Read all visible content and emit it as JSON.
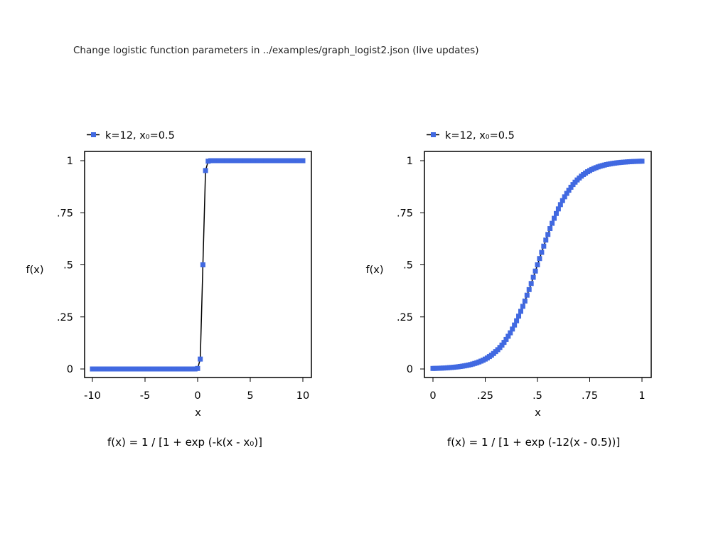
{
  "page_title": "Change logistic function parameters in ../examples/graph_logist2.json (live updates)",
  "colors": {
    "marker": "#4169e1",
    "line": "#000000",
    "frame": "#000000"
  },
  "chart_data": [
    {
      "type": "line",
      "legend": "k=12, x₀=0.5",
      "legend_position": "top-left",
      "xlabel": "x",
      "ylabel": "f(x)",
      "caption": "f(x) = 1 / [1 + exp (-k(x - x₀)]",
      "xlim": [
        -10,
        10
      ],
      "ylim": [
        0,
        1
      ],
      "xticks": [
        -10,
        -5,
        0,
        5,
        10
      ],
      "xtick_labels": [
        "-10",
        "-5",
        "0",
        "5",
        "10"
      ],
      "yticks": [
        0,
        0.25,
        0.5,
        0.75,
        1
      ],
      "ytick_labels": [
        "0",
        ".25",
        ".5",
        ".75",
        "1"
      ],
      "grid": false,
      "function": {
        "k": 12,
        "x0": 0.5
      },
      "x": [
        -10,
        -9.75,
        -9.5,
        -9.25,
        -9,
        -8.75,
        -8.5,
        -8.25,
        -8,
        -7.75,
        -7.5,
        -7.25,
        -7,
        -6.75,
        -6.5,
        -6.25,
        -6,
        -5.75,
        -5.5,
        -5.25,
        -5,
        -4.75,
        -4.5,
        -4.25,
        -4,
        -3.75,
        -3.5,
        -3.25,
        -3,
        -2.75,
        -2.5,
        -2.25,
        -2,
        -1.75,
        -1.5,
        -1.25,
        -1,
        -0.75,
        -0.5,
        -0.25,
        0,
        0.25,
        0.5,
        0.75,
        1,
        1.25,
        1.5,
        1.75,
        2,
        2.25,
        2.5,
        2.75,
        3,
        3.25,
        3.5,
        3.75,
        4,
        4.25,
        4.5,
        4.75,
        5,
        5.25,
        5.5,
        5.75,
        6,
        6.25,
        6.5,
        6.75,
        7,
        7.25,
        7.5,
        7.75,
        8,
        8.25,
        8.5,
        8.75,
        9,
        9.25,
        9.5,
        9.75,
        10
      ],
      "y": [
        0,
        0,
        0,
        0,
        0,
        0,
        0,
        0,
        0,
        0,
        0,
        0,
        0,
        0,
        0,
        0,
        0,
        0,
        0,
        0,
        0,
        0,
        0,
        0,
        0,
        0,
        0,
        0,
        0,
        0,
        0,
        0,
        0,
        0,
        0,
        0,
        0,
        0,
        0,
        0.0001,
        0.0025,
        0.0474,
        0.5,
        0.9526,
        0.9975,
        0.9999,
        1,
        1,
        1,
        1,
        1,
        1,
        1,
        1,
        1,
        1,
        1,
        1,
        1,
        1,
        1,
        1,
        1,
        1,
        1,
        1,
        1,
        1,
        1,
        1,
        1,
        1,
        1,
        1,
        1,
        1,
        1,
        1,
        1,
        1,
        1
      ]
    },
    {
      "type": "line",
      "legend": "k=12, x₀=0.5",
      "legend_position": "top-left",
      "xlabel": "x",
      "ylabel": "f(x)",
      "caption": "f(x) = 1 / [1 + exp (-12(x - 0.5))]",
      "xlim": [
        0,
        1
      ],
      "ylim": [
        0,
        1
      ],
      "xticks": [
        0,
        0.25,
        0.5,
        0.75,
        1
      ],
      "xtick_labels": [
        "0",
        ".25",
        ".5",
        ".75",
        "1"
      ],
      "yticks": [
        0,
        0.25,
        0.5,
        0.75,
        1
      ],
      "ytick_labels": [
        "0",
        ".25",
        ".5",
        ".75",
        "1"
      ],
      "grid": false,
      "function": {
        "k": 12,
        "x0": 0.5
      },
      "x": [
        0,
        0.01,
        0.02,
        0.03,
        0.04,
        0.05,
        0.06,
        0.07,
        0.08,
        0.09,
        0.1,
        0.11,
        0.12,
        0.13,
        0.14,
        0.15,
        0.16,
        0.17,
        0.18,
        0.19,
        0.2,
        0.21,
        0.22,
        0.23,
        0.24,
        0.25,
        0.26,
        0.27,
        0.28,
        0.29,
        0.3,
        0.31,
        0.32,
        0.33,
        0.34,
        0.35,
        0.36,
        0.37,
        0.38,
        0.39,
        0.4,
        0.41,
        0.42,
        0.43,
        0.44,
        0.45,
        0.46,
        0.47,
        0.48,
        0.49,
        0.5,
        0.51,
        0.52,
        0.53,
        0.54,
        0.55,
        0.56,
        0.57,
        0.58,
        0.59,
        0.6,
        0.61,
        0.62,
        0.63,
        0.64,
        0.65,
        0.66,
        0.67,
        0.68,
        0.69,
        0.7,
        0.71,
        0.72,
        0.73,
        0.74,
        0.75,
        0.76,
        0.77,
        0.78,
        0.79,
        0.8,
        0.81,
        0.82,
        0.83,
        0.84,
        0.85,
        0.86,
        0.87,
        0.88,
        0.89,
        0.9,
        0.91,
        0.92,
        0.93,
        0.94,
        0.95,
        0.96,
        0.97,
        0.98,
        0.99,
        1
      ],
      "y": [
        0.0025,
        0.0028,
        0.0031,
        0.0036,
        0.004,
        0.0045,
        0.0051,
        0.0058,
        0.0066,
        0.0074,
        0.0082,
        0.0093,
        0.0104,
        0.0118,
        0.0132,
        0.0149,
        0.0167,
        0.0188,
        0.0212,
        0.0238,
        0.0266,
        0.0299,
        0.0336,
        0.0376,
        0.0422,
        0.0474,
        0.0531,
        0.0594,
        0.0664,
        0.0742,
        0.0832,
        0.0926,
        0.1032,
        0.1147,
        0.1276,
        0.1419,
        0.1571,
        0.1735,
        0.1917,
        0.211,
        0.2315,
        0.2536,
        0.2767,
        0.3008,
        0.3261,
        0.3543,
        0.3812,
        0.4103,
        0.4401,
        0.47,
        0.5,
        0.53,
        0.5599,
        0.5897,
        0.6188,
        0.6457,
        0.6739,
        0.6992,
        0.7233,
        0.7464,
        0.7685,
        0.789,
        0.8083,
        0.8265,
        0.8429,
        0.8581,
        0.8724,
        0.8853,
        0.8968,
        0.9074,
        0.9168,
        0.9258,
        0.9336,
        0.9406,
        0.9469,
        0.9526,
        0.9578,
        0.9624,
        0.9664,
        0.9701,
        0.9734,
        0.9762,
        0.9788,
        0.9812,
        0.9833,
        0.9851,
        0.9868,
        0.9882,
        0.9896,
        0.9907,
        0.9918,
        0.9926,
        0.9934,
        0.9942,
        0.9949,
        0.9955,
        0.996,
        0.9964,
        0.9969,
        0.9972,
        0.9975
      ]
    }
  ]
}
